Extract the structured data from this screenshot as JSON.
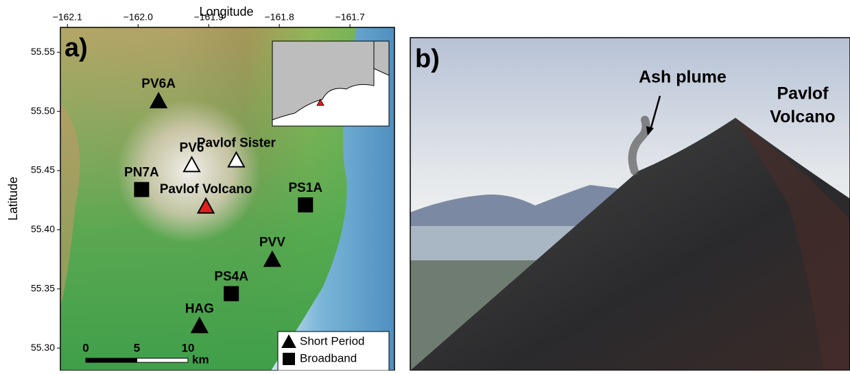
{
  "panel_a": {
    "label": "a)",
    "x_label": "Longitude",
    "y_label": "Latitude",
    "xlim": [
      -162.11,
      -161.637
    ],
    "xticks": [
      {
        "value": -162.1,
        "label": "−162.1"
      },
      {
        "value": -162.0,
        "label": "−162.0"
      },
      {
        "value": -161.9,
        "label": "−161.9"
      },
      {
        "value": -161.8,
        "label": "−161.8"
      },
      {
        "value": -161.7,
        "label": "−161.7"
      }
    ],
    "ylim": [
      55.281,
      55.571
    ],
    "yticks": [
      {
        "value": 55.3,
        "label": "55.30"
      },
      {
        "value": 55.35,
        "label": "55.35"
      },
      {
        "value": 55.4,
        "label": "55.40"
      },
      {
        "value": 55.45,
        "label": "55.45"
      },
      {
        "value": 55.5,
        "label": "55.50"
      },
      {
        "value": 55.55,
        "label": "55.55"
      }
    ],
    "stations": [
      {
        "name": "PV6A",
        "lon": -161.971,
        "lat": 55.509,
        "marker": "triangle",
        "color": "#000000"
      },
      {
        "name": "PV6",
        "lon": -161.924,
        "lat": 55.455,
        "marker": "triangle",
        "color": "#ffffff"
      },
      {
        "name": "Pavlof Sister",
        "lon": -161.861,
        "lat": 55.459,
        "marker": "triangle",
        "color": "#ffffff"
      },
      {
        "name": "PN7A",
        "lon": -161.995,
        "lat": 55.434,
        "marker": "square",
        "color": "#000000"
      },
      {
        "name": "Pavlof Volcano",
        "lon": -161.904,
        "lat": 55.42,
        "marker": "triangle",
        "color": "#e0201c"
      },
      {
        "name": "PS1A",
        "lon": -161.763,
        "lat": 55.421,
        "marker": "square",
        "color": "#000000"
      },
      {
        "name": "PVV",
        "lon": -161.81,
        "lat": 55.375,
        "marker": "triangle",
        "color": "#000000"
      },
      {
        "name": "PS4A",
        "lon": -161.868,
        "lat": 55.346,
        "marker": "square",
        "color": "#000000"
      },
      {
        "name": "HAG",
        "lon": -161.913,
        "lat": 55.319,
        "marker": "triangle",
        "color": "#000000"
      }
    ],
    "legend": [
      {
        "marker": "triangle",
        "label": "Short Period"
      },
      {
        "marker": "square",
        "label": "Broadband"
      }
    ],
    "scale_bar": {
      "ticks": [
        0,
        5,
        10
      ],
      "unit": "km"
    }
  },
  "panel_b": {
    "label": "b)",
    "annotations": [
      {
        "lines": [
          "Ash plume"
        ]
      },
      {
        "lines": [
          "Pavlof",
          "Volcano"
        ]
      }
    ]
  }
}
